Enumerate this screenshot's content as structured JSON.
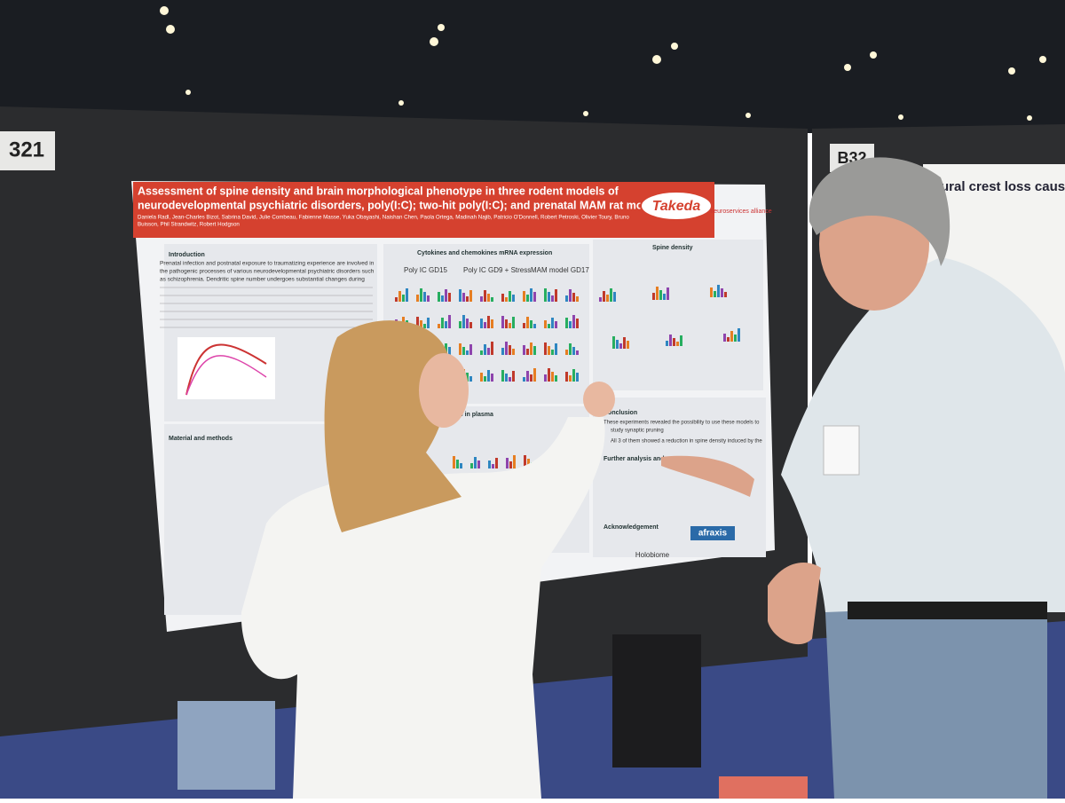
{
  "booth": {
    "left": "321",
    "right": "B32"
  },
  "poster": {
    "title_line1": "Assessment of spine density and brain morphological phenotype in three rodent models of",
    "title_line2": "neurodevelopmental psychiatric disorders, poly(I:C); two-hit poly(I:C); and prenatal MAM rat model",
    "authors": "Daniela Radl, Jean-Charles Bizot, Sabrina David, Julie Combeau, Fabienne Masse, Yuka Obayashi, Naishan Chen, Paola Ortega, Madinah Najib, Patricio O'Donnell, Robert Petroski, Olivier Toury, Bruno",
    "authors2": "Buisson, Phil Strandwitz, Robert Hodgson",
    "logo": "Takeda",
    "partner": "neuroservices alliance",
    "sections": {
      "introduction": "Introduction",
      "intro_text": "Prenatal infection and postnatal exposure to traumatizing experience are involved in",
      "intro_text2": "the pathogenic processes of various neurodevelopmental psychiatric disorders such",
      "intro_text3": "as schizophrenia. Dendritic spine number undergoes substantial changes during",
      "cytokines": "Cytokines and chemokines mRNA expression",
      "spine": "Spine density",
      "methods": "Material and methods",
      "plasma": "Chemokines in plasma",
      "conclusion": "Conclusion",
      "conclusion_text": "These experiments revealed the possibility to use these models to",
      "conclusion_text2": "study synaptic pruning",
      "conclusion_text3": "All 3 of them showed a reduction in spine density induced by the",
      "further": "Further analysis and next step",
      "acknowledgement": "Acknowledgement"
    },
    "groups": [
      "Poly IC GD15",
      "Poly IC GD9 + Stress",
      "MAM model GD17"
    ],
    "sponsors": [
      "Holobiome",
      "afraxis"
    ]
  },
  "right_poster": {
    "title": "ural crest loss caused by p"
  }
}
